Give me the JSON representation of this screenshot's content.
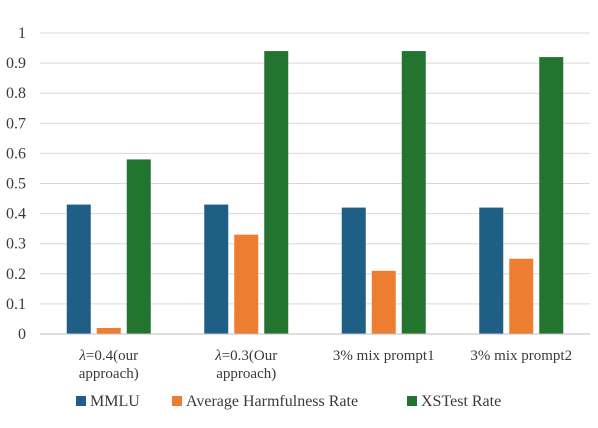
{
  "chart_data": {
    "type": "bar",
    "title": "",
    "xlabel": "",
    "ylabel": "",
    "ylim": [
      0,
      1
    ],
    "yticks": [
      0,
      0.1,
      0.2,
      0.3,
      0.4,
      0.5,
      0.6,
      0.7,
      0.8,
      0.9,
      1
    ],
    "ytick_labels": [
      "0",
      "0.1",
      "0.2",
      "0.3",
      "0.4",
      "0.5",
      "0.6",
      "0.7",
      "0.8",
      "0.9",
      "1"
    ],
    "grid": true,
    "legend_position": "bottom",
    "categories": [
      {
        "prefix_symbol": "λ",
        "lines": [
          "=0.4(our",
          "approach)"
        ]
      },
      {
        "prefix_symbol": "λ",
        "lines": [
          "=0.3(Our",
          "approach)"
        ]
      },
      {
        "prefix_symbol": "",
        "lines": [
          "3% mix prompt1"
        ]
      },
      {
        "prefix_symbol": "",
        "lines": [
          "3% mix prompt2"
        ]
      }
    ],
    "series": [
      {
        "name": "MMLU",
        "color": "#1f5f85",
        "values": [
          0.43,
          0.43,
          0.42,
          0.42
        ]
      },
      {
        "name": "Average Harmfulness Rate",
        "color": "#ed7d31",
        "values": [
          0.02,
          0.33,
          0.21,
          0.25
        ]
      },
      {
        "name": "XSTest Rate",
        "color": "#23742f",
        "values": [
          0.58,
          0.94,
          0.94,
          0.92
        ]
      }
    ]
  }
}
